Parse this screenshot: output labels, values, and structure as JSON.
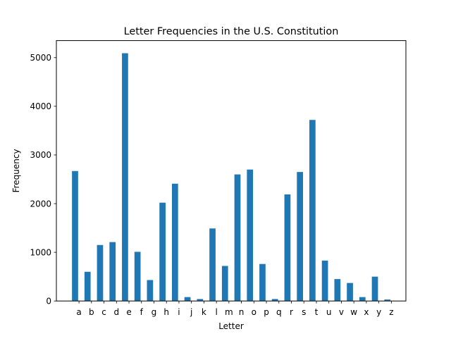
{
  "chart_data": {
    "type": "bar",
    "title": "Letter Frequencies in the U.S. Constitution",
    "xlabel": "Letter",
    "ylabel": "Frequency",
    "categories": [
      "a",
      "b",
      "c",
      "d",
      "e",
      "f",
      "g",
      "h",
      "i",
      "j",
      "k",
      "l",
      "m",
      "n",
      "o",
      "p",
      "q",
      "r",
      "s",
      "t",
      "u",
      "v",
      "w",
      "x",
      "y",
      "z"
    ],
    "values": [
      2670,
      600,
      1150,
      1210,
      5090,
      1010,
      430,
      2020,
      2410,
      80,
      40,
      1490,
      720,
      2600,
      2700,
      760,
      40,
      2190,
      2650,
      3720,
      830,
      450,
      370,
      80,
      500,
      30
    ],
    "ylim": [
      0,
      5350
    ],
    "yticks": [
      0,
      1000,
      2000,
      3000,
      4000,
      5000
    ],
    "grid": false,
    "bar_color": "#1f77b4"
  }
}
